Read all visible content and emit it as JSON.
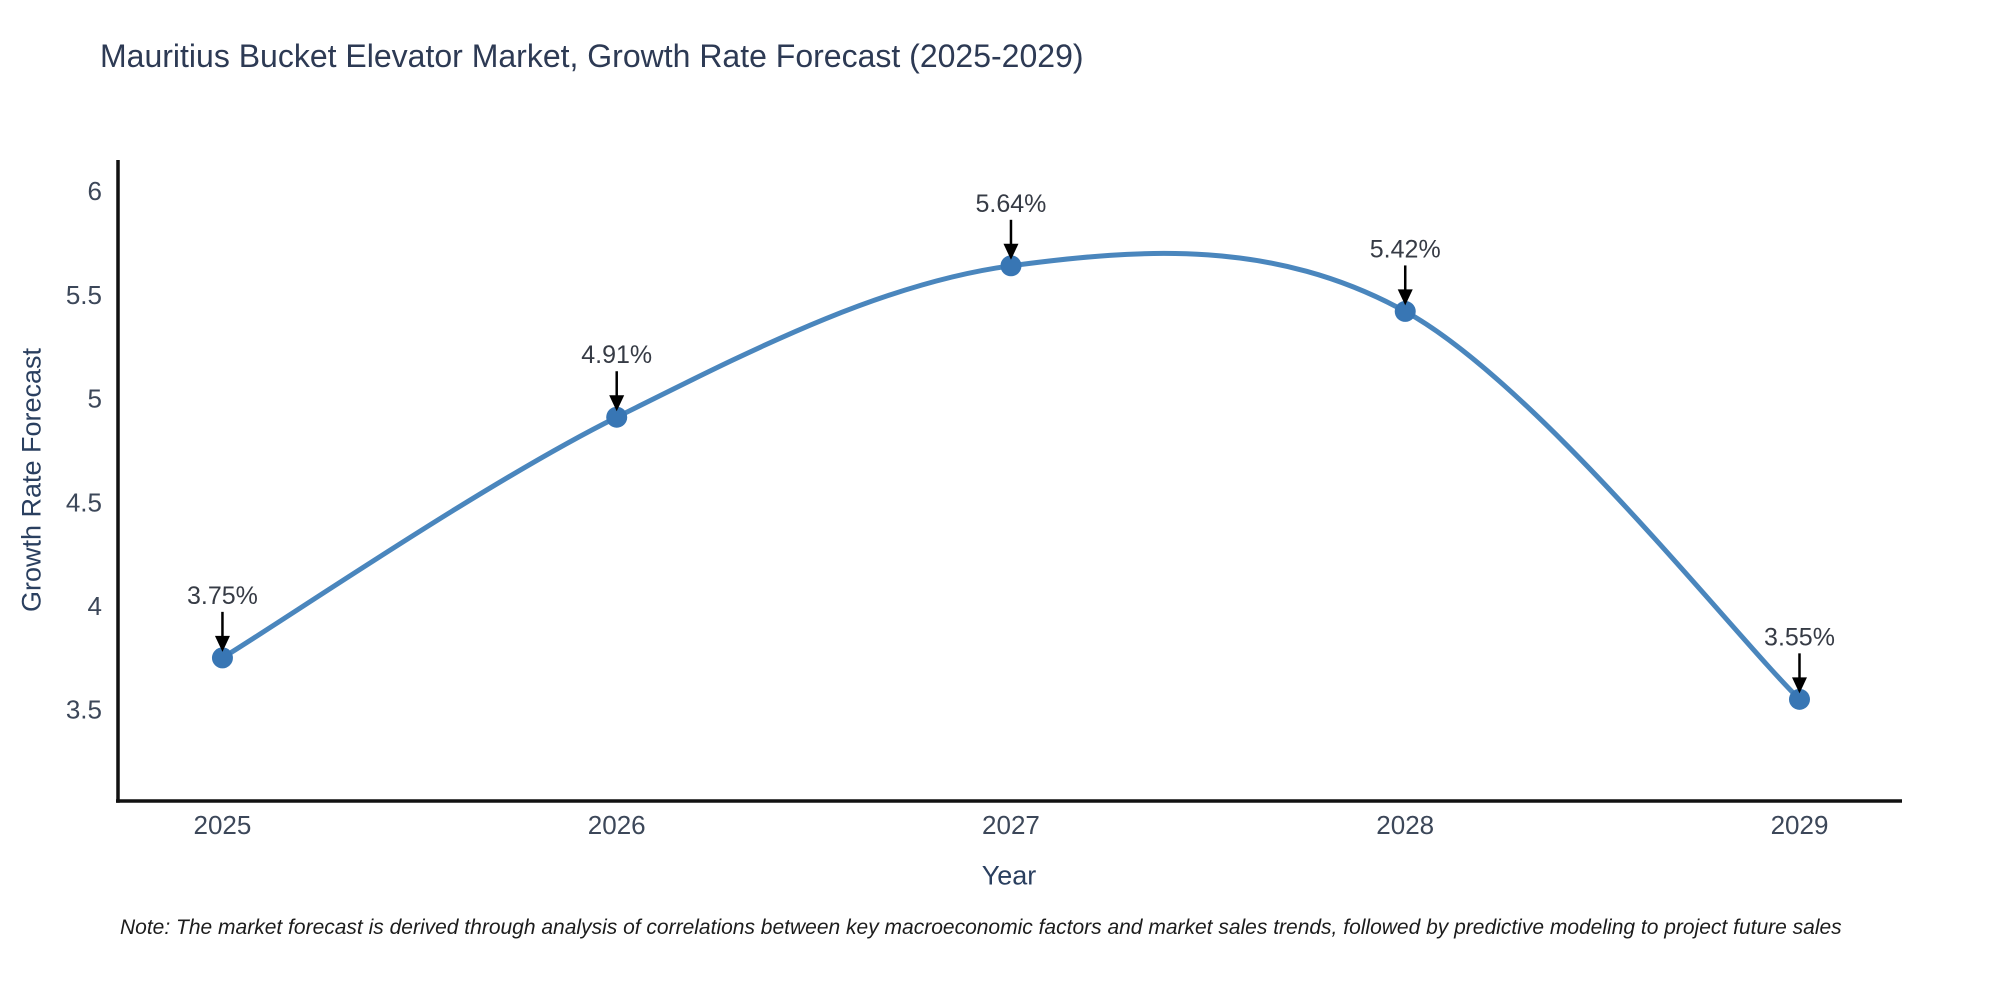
{
  "page": {
    "note": "Note: The market forecast is derived through analysis of correlations between key macroeconomic factors and market sales trends, followed by predictive modeling to project future sales"
  },
  "chart_data": {
    "type": "line",
    "title": "Mauritius Bucket Elevator Market, Growth Rate Forecast (2025-2029)",
    "xlabel": "Year",
    "ylabel": "Growth Rate Forecast",
    "x": [
      2025,
      2026,
      2027,
      2028,
      2029
    ],
    "series": [
      {
        "name": "Growth Rate Forecast",
        "values": [
          3.75,
          4.91,
          5.64,
          5.42,
          3.55
        ]
      }
    ],
    "point_labels": [
      "3.75%",
      "4.91%",
      "5.64%",
      "5.42%",
      "3.55%"
    ],
    "xticks": [
      "2025",
      "2026",
      "2027",
      "2028",
      "2029"
    ],
    "yticks": [
      3.5,
      4,
      4.5,
      5,
      5.5,
      6
    ],
    "xlim": [
      2024.73,
      2029.26
    ],
    "ylim": [
      3.06,
      6.15
    ],
    "line_shape": "spline",
    "grid": false,
    "legend": "none",
    "colors": {
      "line": "#4a86bd",
      "marker": "#3876b4",
      "axis": "#111111",
      "title_text": "#2d3a54",
      "axis_title_text": "#2a3f5f",
      "tick_text": "#3c4759",
      "annotation_text": "#363b45",
      "arrow": "#000000"
    }
  }
}
